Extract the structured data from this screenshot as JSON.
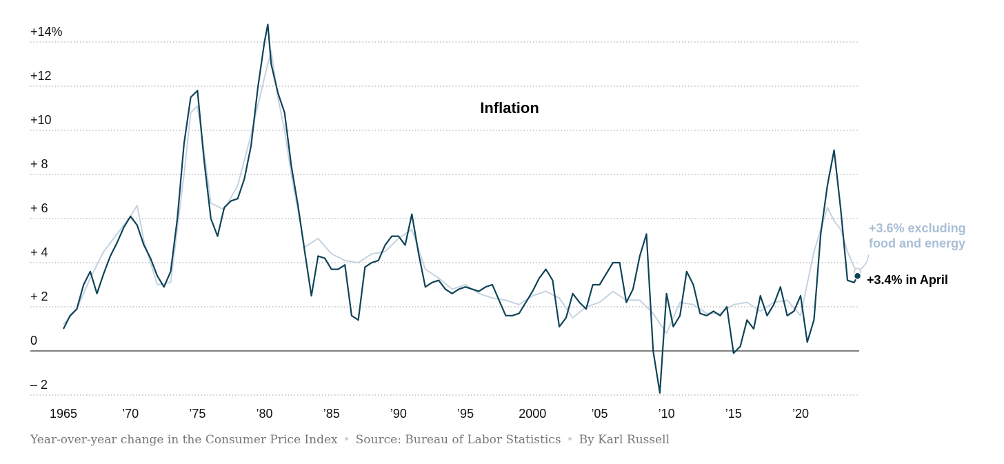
{
  "chart_data": {
    "type": "line",
    "title": "Inflation",
    "xlabel": "",
    "ylabel": "",
    "xlim": [
      1965,
      2024.5
    ],
    "ylim": [
      -2.2,
      14.5
    ],
    "grid": true,
    "x_ticks": [
      {
        "value": 1965,
        "label": "1965"
      },
      {
        "value": 1970,
        "label": "’70"
      },
      {
        "value": 1975,
        "label": "’75"
      },
      {
        "value": 1980,
        "label": "’80"
      },
      {
        "value": 1985,
        "label": "’85"
      },
      {
        "value": 1990,
        "label": "’90"
      },
      {
        "value": 1995,
        "label": "’95"
      },
      {
        "value": 2000,
        "label": "2000"
      },
      {
        "value": 2005,
        "label": "’05"
      },
      {
        "value": 2010,
        "label": "’10"
      },
      {
        "value": 2015,
        "label": "’15"
      },
      {
        "value": 2020,
        "label": "’20"
      }
    ],
    "y_ticks": [
      {
        "value": 14,
        "label": "+14%"
      },
      {
        "value": 12,
        "label": "+12"
      },
      {
        "value": 10,
        "label": "+10"
      },
      {
        "value": 8,
        "label": "+ 8"
      },
      {
        "value": 6,
        "label": "+ 6"
      },
      {
        "value": 4,
        "label": "+ 4"
      },
      {
        "value": 2,
        "label": "+ 2"
      },
      {
        "value": 0,
        "label": "0"
      },
      {
        "value": -2,
        "label": "– 2"
      }
    ],
    "series": [
      {
        "name": "Consumer Price Index",
        "color": "#0f4358",
        "x": [
          1965.0,
          1965.5,
          1966.0,
          1966.5,
          1967.0,
          1967.5,
          1968.0,
          1968.5,
          1969.0,
          1969.5,
          1970.0,
          1970.5,
          1971.0,
          1971.5,
          1972.0,
          1972.5,
          1973.0,
          1973.5,
          1974.0,
          1974.5,
          1975.0,
          1975.5,
          1976.0,
          1976.5,
          1977.0,
          1977.5,
          1978.0,
          1978.5,
          1979.0,
          1979.5,
          1980.0,
          1980.25,
          1980.5,
          1981.0,
          1981.5,
          1982.0,
          1982.5,
          1983.0,
          1983.5,
          1984.0,
          1984.5,
          1985.0,
          1985.5,
          1986.0,
          1986.5,
          1987.0,
          1987.5,
          1988.0,
          1988.5,
          1989.0,
          1989.5,
          1990.0,
          1990.5,
          1991.0,
          1991.5,
          1992.0,
          1992.5,
          1993.0,
          1993.5,
          1994.0,
          1994.5,
          1995.0,
          1995.5,
          1996.0,
          1996.5,
          1997.0,
          1997.5,
          1998.0,
          1998.5,
          1999.0,
          1999.5,
          2000.0,
          2000.5,
          2001.0,
          2001.5,
          2002.0,
          2002.5,
          2003.0,
          2003.5,
          2004.0,
          2004.5,
          2005.0,
          2005.5,
          2006.0,
          2006.5,
          2007.0,
          2007.5,
          2008.0,
          2008.5,
          2009.0,
          2009.5,
          2010.0,
          2010.5,
          2011.0,
          2011.5,
          2012.0,
          2012.5,
          2013.0,
          2013.5,
          2014.0,
          2014.5,
          2015.0,
          2015.5,
          2016.0,
          2016.5,
          2017.0,
          2017.5,
          2018.0,
          2018.5,
          2019.0,
          2019.5,
          2020.0,
          2020.5,
          2021.0,
          2021.5,
          2022.0,
          2022.5,
          2023.0,
          2023.5,
          2024.0,
          2024.25
        ],
        "values": [
          1.0,
          1.6,
          1.9,
          3.0,
          3.6,
          2.6,
          3.5,
          4.3,
          4.9,
          5.6,
          6.1,
          5.7,
          4.8,
          4.2,
          3.4,
          2.9,
          3.6,
          6.0,
          9.4,
          11.5,
          11.8,
          8.6,
          6.0,
          5.2,
          6.5,
          6.8,
          6.9,
          7.8,
          9.3,
          11.9,
          14.0,
          14.8,
          13.0,
          11.7,
          10.8,
          8.4,
          6.6,
          4.5,
          2.5,
          4.3,
          4.2,
          3.7,
          3.7,
          3.9,
          1.6,
          1.4,
          3.8,
          4.0,
          4.1,
          4.8,
          5.2,
          5.2,
          4.8,
          6.2,
          4.4,
          2.9,
          3.1,
          3.2,
          2.8,
          2.6,
          2.8,
          2.9,
          2.8,
          2.7,
          2.9,
          3.0,
          2.3,
          1.6,
          1.6,
          1.7,
          2.2,
          2.7,
          3.3,
          3.7,
          3.2,
          1.1,
          1.5,
          2.6,
          2.2,
          1.9,
          3.0,
          3.0,
          3.5,
          4.0,
          4.0,
          2.2,
          2.8,
          4.3,
          5.3,
          0.0,
          -1.9,
          2.6,
          1.1,
          1.6,
          3.6,
          3.0,
          1.7,
          1.6,
          1.8,
          1.6,
          2.0,
          -0.1,
          0.2,
          1.4,
          1.0,
          2.5,
          1.6,
          2.1,
          2.9,
          1.6,
          1.8,
          2.5,
          0.4,
          1.4,
          5.3,
          7.5,
          9.1,
          6.4,
          3.2,
          3.1,
          3.4
        ]
      },
      {
        "name": "Excluding food and energy",
        "color": "#c5d3e0",
        "x": [
          1965.0,
          1966.0,
          1967.0,
          1968.0,
          1969.0,
          1970.0,
          1970.5,
          1971.0,
          1972.0,
          1973.0,
          1974.0,
          1974.5,
          1975.0,
          1975.5,
          1976.0,
          1977.0,
          1978.0,
          1979.0,
          1980.0,
          1980.5,
          1981.0,
          1981.5,
          1982.0,
          1983.0,
          1984.0,
          1985.0,
          1986.0,
          1987.0,
          1988.0,
          1989.0,
          1990.0,
          1991.0,
          1992.0,
          1993.0,
          1994.0,
          1995.0,
          1996.0,
          1997.0,
          1998.0,
          1999.0,
          2000.0,
          2001.0,
          2002.0,
          2003.0,
          2004.0,
          2005.0,
          2006.0,
          2007.0,
          2008.0,
          2009.0,
          2010.0,
          2011.0,
          2012.0,
          2013.0,
          2014.0,
          2015.0,
          2016.0,
          2017.0,
          2018.0,
          2019.0,
          2020.0,
          2021.0,
          2021.5,
          2022.0,
          2022.5,
          2023.0,
          2023.5,
          2024.0,
          2024.25
        ],
        "values": [
          1.2,
          1.9,
          3.3,
          4.5,
          5.3,
          6.1,
          6.6,
          5.0,
          3.0,
          3.1,
          8.0,
          10.8,
          11.1,
          9.0,
          6.7,
          6.4,
          7.5,
          9.8,
          12.4,
          13.6,
          11.5,
          10.0,
          8.0,
          4.7,
          5.1,
          4.4,
          4.1,
          4.0,
          4.4,
          4.5,
          5.1,
          5.5,
          3.7,
          3.3,
          2.8,
          3.0,
          2.6,
          2.4,
          2.3,
          2.1,
          2.5,
          2.7,
          2.4,
          1.5,
          2.0,
          2.2,
          2.7,
          2.3,
          2.3,
          1.7,
          0.8,
          2.2,
          2.1,
          1.7,
          1.7,
          2.1,
          2.2,
          1.8,
          2.2,
          2.3,
          1.6,
          4.5,
          5.5,
          6.5,
          5.9,
          5.5,
          4.5,
          3.8,
          3.6
        ]
      }
    ],
    "annotations": {
      "headline_label": "+3.4% in April",
      "core_label_line1": "+3.6% excluding",
      "core_label_line2": "food and energy"
    }
  },
  "footer": {
    "description": "Year-over-year change in the Consumer Price Index",
    "source": "Source:  Bureau of Labor Statistics",
    "byline": "By Karl Russell"
  }
}
